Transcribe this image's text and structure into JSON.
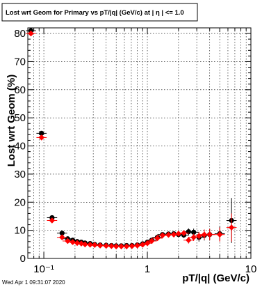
{
  "title": "Lost wrt Geom for Primary vs pT/|q| (GeV/c) at |  η | <= 1.0",
  "footer": "Wed Apr  1 09:31:07 2020",
  "chart_data": {
    "type": "scatter",
    "title": "Lost wrt Geom for Primary vs pT/|q| (GeV/c) at |  η | <= 1.0",
    "xlabel": "pT/|q| (GeV/c)",
    "ylabel": "Lost wrt Geom (%)",
    "xscale": "log",
    "xlim": [
      0.07,
      10
    ],
    "ylim": [
      0,
      82
    ],
    "grid": true,
    "x_tick_labels": [
      "10⁻¹",
      "1",
      "10"
    ],
    "y_tick_labels": [
      "0",
      "10",
      "20",
      "30",
      "40",
      "50",
      "60",
      "70",
      "80"
    ],
    "series": [
      {
        "marker": "circle",
        "color": "#000000",
        "x": [
          0.075,
          0.095,
          0.12,
          0.15,
          0.17,
          0.19,
          0.21,
          0.23,
          0.25,
          0.28,
          0.31,
          0.35,
          0.4,
          0.45,
          0.5,
          0.56,
          0.63,
          0.71,
          0.8,
          0.9,
          1.0,
          1.1,
          1.25,
          1.4,
          1.6,
          1.8,
          2.0,
          2.25,
          2.5,
          2.8,
          3.15,
          3.55,
          4.0,
          5.0,
          6.5
        ],
        "y": [
          81,
          44.5,
          14.5,
          9,
          7,
          6.5,
          6,
          5.8,
          5.5,
          5.3,
          5.0,
          4.8,
          4.7,
          4.6,
          4.5,
          4.5,
          4.6,
          4.6,
          4.8,
          5.2,
          5.8,
          6.5,
          7.5,
          8.5,
          8.7,
          8.8,
          8.5,
          8.3,
          9.5,
          9.3,
          7.5,
          8.2,
          8.5,
          8.8,
          13.5
        ],
        "yerr": [
          0.6,
          0.8,
          0.7,
          0.6,
          0.5,
          0.4,
          0.4,
          0.4,
          0.4,
          0.3,
          0.3,
          0.3,
          0.3,
          0.3,
          0.3,
          0.3,
          0.3,
          0.3,
          0.3,
          0.4,
          0.4,
          0.5,
          0.5,
          0.6,
          0.7,
          0.8,
          0.9,
          1.0,
          1.2,
          1.3,
          1.5,
          1.8,
          2.0,
          2.5,
          8
        ]
      },
      {
        "marker": "diamond",
        "color": "#ff0000",
        "x": [
          0.075,
          0.095,
          0.12,
          0.15,
          0.17,
          0.19,
          0.21,
          0.23,
          0.25,
          0.28,
          0.31,
          0.35,
          0.4,
          0.45,
          0.5,
          0.56,
          0.63,
          0.71,
          0.8,
          0.9,
          1.0,
          1.1,
          1.25,
          1.4,
          1.6,
          1.8,
          2.0,
          2.25,
          2.5,
          2.8,
          3.15,
          3.55,
          4.0,
          5.0,
          6.5
        ],
        "y": [
          80,
          43,
          13.5,
          7.5,
          6.2,
          5.8,
          5.5,
          5.3,
          5.0,
          4.9,
          4.8,
          4.6,
          4.5,
          4.4,
          4.3,
          4.3,
          4.3,
          4.4,
          4.6,
          4.9,
          5.4,
          6.2,
          7.2,
          8.2,
          8.4,
          8.5,
          8.8,
          9.0,
          6.5,
          7.5,
          8.0,
          8.5,
          8.5,
          8.5,
          11.0
        ],
        "yerr": [
          0.6,
          0.8,
          0.7,
          0.6,
          0.5,
          0.4,
          0.4,
          0.4,
          0.4,
          0.3,
          0.3,
          0.3,
          0.3,
          0.3,
          0.3,
          0.3,
          0.3,
          0.3,
          0.3,
          0.4,
          0.4,
          0.5,
          0.5,
          0.6,
          0.7,
          0.8,
          0.9,
          1.0,
          1.2,
          1.3,
          1.5,
          1.8,
          2.0,
          2.5,
          5
        ]
      }
    ]
  }
}
